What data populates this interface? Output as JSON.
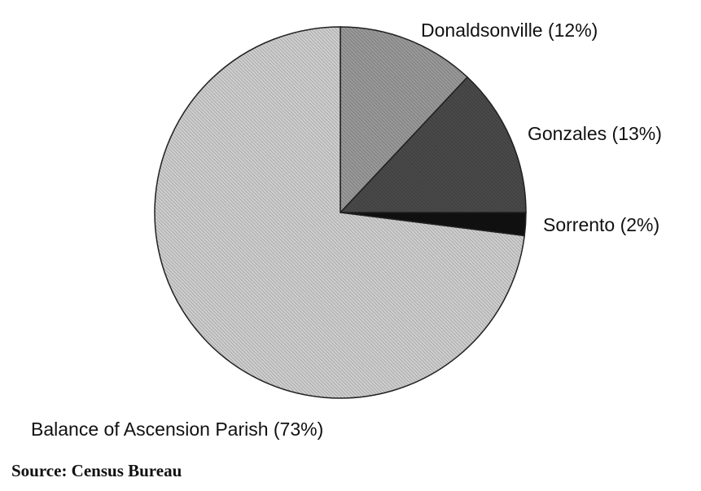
{
  "chart_data": {
    "type": "pie",
    "title": "",
    "start_angle": "12 o'clock",
    "direction": "clockwise",
    "slices": [
      {
        "name": "Donaldsonville",
        "value": 12,
        "label": "Donaldsonville (12%)",
        "color": "#9a9a9a"
      },
      {
        "name": "Gonzales",
        "value": 13,
        "label": "Gonzales (13%)",
        "color": "#4a4a4a"
      },
      {
        "name": "Sorrento",
        "value": 2,
        "label": "Sorrento (2%)",
        "color": "#111111"
      },
      {
        "name": "Balance of Ascension Parish",
        "value": 73,
        "label": "Balance of Ascension Parish (73%)",
        "color": "#cfcfcf"
      }
    ],
    "source": "Source: Census Bureau"
  }
}
